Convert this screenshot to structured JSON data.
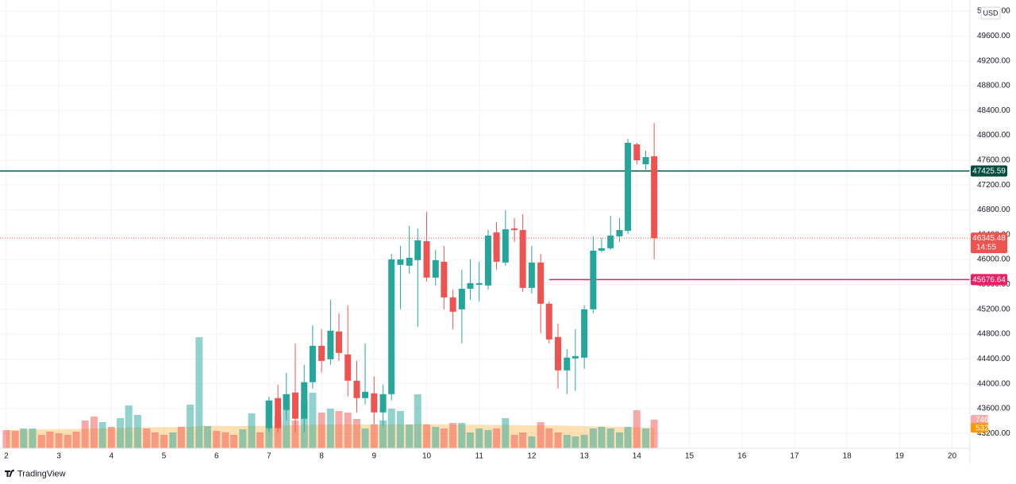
{
  "chart_data": {
    "type": "candlestick",
    "currency": "USD",
    "x": [
      7,
      7.17,
      7.33,
      7.5,
      7.67,
      7.83,
      8,
      8.17,
      8.33,
      8.5,
      8.67,
      8.83,
      9,
      9.17,
      9.33,
      9.5,
      9.67,
      9.83,
      10,
      10.17,
      10.33,
      10.5,
      10.67,
      10.83,
      11,
      11.17,
      11.33,
      11.5,
      11.67,
      11.83,
      12,
      12.17,
      12.33,
      12.5,
      12.67,
      12.83,
      13,
      13.17,
      13.33,
      13.5,
      13.67,
      13.83,
      14,
      14.17,
      14.33
    ],
    "open": [
      43283,
      43768,
      43577,
      43858,
      43436,
      44024,
      44611,
      44394,
      44841,
      44471,
      44049,
      43768,
      43845,
      43538,
      43832,
      45914,
      45901,
      45990,
      46297,
      45709,
      45965,
      45390,
      45198,
      45530,
      45594,
      45582,
      46437,
      45952,
      46501,
      46475,
      45543,
      45952,
      45288,
      44752,
      44215,
      44407,
      44420,
      45198,
      46143,
      46182,
      46373,
      46463,
      47855,
      47535,
      47663
    ],
    "high": [
      43794,
      43985,
      44177,
      44649,
      44305,
      44943,
      44879,
      45352,
      45135,
      45262,
      44368,
      44649,
      44113,
      43985,
      46092,
      46220,
      46539,
      46501,
      46769,
      46156,
      46220,
      45518,
      45837,
      46003,
      45965,
      46475,
      46603,
      46795,
      46667,
      46731,
      46220,
      46092,
      45326,
      44969,
      44560,
      44879,
      45262,
      46373,
      46348,
      46705,
      46667,
      47944,
      47880,
      47752,
      48199
    ],
    "low": [
      43219,
      43219,
      43411,
      43219,
      43219,
      43921,
      44177,
      44305,
      44368,
      43794,
      43538,
      43666,
      43347,
      43321,
      43730,
      45198,
      45773,
      44918,
      45645,
      45582,
      45198,
      44879,
      44649,
      45352,
      45326,
      45518,
      45837,
      45901,
      46284,
      45479,
      45454,
      44815,
      44649,
      43921,
      43832,
      43883,
      44241,
      45135,
      46118,
      46156,
      46284,
      46412,
      47535,
      47446,
      46003
    ],
    "close": [
      43730,
      43283,
      43832,
      43436,
      44024,
      44611,
      44368,
      44854,
      44496,
      44049,
      43768,
      43870,
      43538,
      43832,
      46003,
      46003,
      46029,
      46309,
      45709,
      45990,
      45390,
      45160,
      45530,
      45620,
      45620,
      46386,
      45965,
      46488,
      46475,
      45543,
      45952,
      45288,
      44713,
      44215,
      44420,
      44445,
      45198,
      46143,
      46182,
      46386,
      46475,
      47880,
      47599,
      47650,
      46345.48
    ],
    "up_color": "#26a69a",
    "down_color": "#ef5350",
    "xlim": [
      1.88,
      20.34
    ],
    "xticks": [
      2,
      3,
      4,
      5,
      6,
      7,
      8,
      9,
      10,
      11,
      12,
      13,
      14,
      15,
      16,
      17,
      18,
      19,
      20
    ],
    "ylim": [
      42960,
      50180
    ],
    "yticks": [
      {
        "value": 43200,
        "label": "43200.00"
      },
      {
        "value": 43600,
        "label": "43600.00"
      },
      {
        "value": 44000,
        "label": "44000.00"
      },
      {
        "value": 44400,
        "label": "44400.00"
      },
      {
        "value": 44800,
        "label": "44800.00"
      },
      {
        "value": 45200,
        "label": "45200.00"
      },
      {
        "value": 45600,
        "label": "45600.00"
      },
      {
        "value": 46000,
        "label": "46000.00"
      },
      {
        "value": 46400,
        "label": "46400.00"
      },
      {
        "value": 46800,
        "label": "46800.00"
      },
      {
        "value": 47200,
        "label": "47200.00"
      },
      {
        "value": 47600,
        "label": "47600.00"
      },
      {
        "value": 48000,
        "label": "48000.00"
      },
      {
        "value": 48400,
        "label": "48400.00"
      },
      {
        "value": 48800,
        "label": "48800.00"
      },
      {
        "value": 49200,
        "label": "49200.00"
      },
      {
        "value": 49600,
        "label": "49600.00"
      },
      {
        "value": 50000,
        "label": "50000.00"
      }
    ],
    "grid": true,
    "hlines": [
      {
        "value": 47425.59,
        "color": "#004d40"
      },
      {
        "value": 45676.64,
        "color": "#e91e63",
        "start": 12.33
      }
    ],
    "countdown": "14:55",
    "volume": {
      "x": [
        2,
        2.17,
        2.33,
        2.5,
        2.67,
        2.83,
        3,
        3.17,
        3.33,
        3.5,
        3.67,
        3.83,
        4,
        4.17,
        4.33,
        4.5,
        4.67,
        4.83,
        5,
        5.17,
        5.33,
        5.5,
        5.67,
        5.83,
        6,
        6.17,
        6.33,
        6.5,
        6.67,
        6.83,
        7,
        7.17,
        7.33,
        7.5,
        7.67,
        7.83,
        8,
        8.17,
        8.33,
        8.5,
        8.67,
        8.83,
        9,
        9.17,
        9.33,
        9.5,
        9.67,
        9.83,
        10,
        10.17,
        10.33,
        10.5,
        10.67,
        10.83,
        11,
        11.17,
        11.33,
        11.5,
        11.67,
        11.83,
        12,
        12.17,
        12.33,
        12.5,
        12.67,
        12.83,
        13,
        13.17,
        13.33,
        13.5,
        13.67,
        13.83,
        14,
        14.17,
        14.33
      ],
      "values": [
        476,
        455,
        518,
        518,
        352,
        435,
        393,
        352,
        435,
        725,
        828,
        683,
        559,
        787,
        1118,
        869,
        518,
        414,
        352,
        414,
        559,
        1139,
        2898,
        580,
        455,
        414,
        352,
        497,
        911,
        414,
        1242,
        828,
        1408,
        725,
        1242,
        1449,
        932,
        1035,
        973,
        932,
        766,
        518,
        621,
        725,
        1035,
        973,
        621,
        1408,
        621,
        559,
        518,
        662,
        662,
        414,
        518,
        476,
        518,
        787,
        352,
        414,
        311,
        683,
        518,
        414,
        352,
        311,
        352,
        518,
        559,
        518,
        414,
        559,
        994,
        518,
        746
      ],
      "colors": [
        "#ef535080",
        "#ef535080",
        "#26a69a80",
        "#26a69a80",
        "#ef535080",
        "#ef535080",
        "#ef535080",
        "#ef535080",
        "#ef535080",
        "#ef535080",
        "#ef535080",
        "#26a69a80",
        "#ef535080",
        "#26a69a80",
        "#26a69a80",
        "#26a69a80",
        "#ef535080",
        "#ef535080",
        "#ef535080",
        "#26a69a80",
        "#ef535080",
        "#26a69a80",
        "#26a69a80",
        "#26a69a80",
        "#ef535080",
        "#ef535080",
        "#ef535080",
        "#26a69a80",
        "#26a69a80",
        "#ef535080",
        "#26a69a80",
        "#ef535080",
        "#26a69a80",
        "#ef535080",
        "#26a69a80",
        "#26a69a80",
        "#ef535080",
        "#26a69a80",
        "#ef535080",
        "#ef535080",
        "#ef535080",
        "#26a69a80",
        "#ef535080",
        "#26a69a80",
        "#26a69a80",
        "#26a69a80",
        "#26a69a80",
        "#26a69a80",
        "#ef535080",
        "#26a69a80",
        "#ef535080",
        "#ef535080",
        "#26a69a80",
        "#26a69a80",
        "#26a69a80",
        "#26a69a80",
        "#ef535080",
        "#26a69a80",
        "#ef535080",
        "#ef535080",
        "#26a69a80",
        "#ef535080",
        "#ef535080",
        "#ef535080",
        "#26a69a80",
        "#26a69a80",
        "#26a69a80",
        "#26a69a80",
        "#26a69a80",
        "#26a69a80",
        "#26a69a80",
        "#26a69a80",
        "#ef535080",
        "#26a69a80",
        "#ef535080"
      ],
      "ylim": [
        0,
        11700
      ],
      "ma": {
        "color": "#ff9800",
        "values": [
          480,
          485,
          490,
          495,
          497,
          500,
          500,
          502,
          505,
          510,
          515,
          520,
          525,
          530,
          540,
          545,
          548,
          550,
          552,
          555,
          558,
          565,
          580,
          585,
          585,
          585,
          583,
          582,
          585,
          585,
          590,
          592,
          600,
          602,
          608,
          615,
          618,
          620,
          622,
          625,
          625,
          622,
          622,
          624,
          626,
          628,
          625,
          632,
          630,
          628,
          625,
          622,
          620,
          618,
          615,
          612,
          610,
          612,
          608,
          604,
          600,
          600,
          598,
          595,
          590,
          585,
          580,
          575,
          570,
          565,
          560,
          555,
          548,
          540,
          532
        ]
      }
    },
    "watermark": "TradingView"
  }
}
